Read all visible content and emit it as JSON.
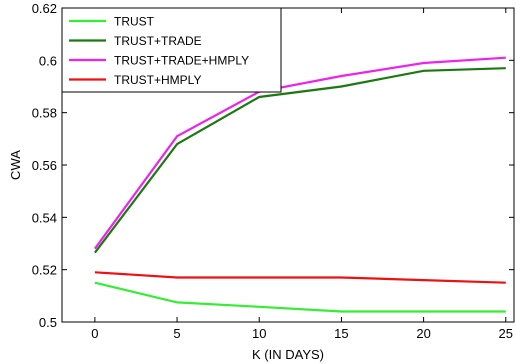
{
  "chart_data": {
    "type": "line",
    "title": "",
    "xlabel": "K (IN DAYS)",
    "ylabel": "CWA",
    "x": [
      0,
      5,
      10,
      15,
      20,
      25
    ],
    "xlim": [
      -2,
      25.5
    ],
    "ylim": [
      0.5,
      0.62
    ],
    "xticks": [
      0,
      5,
      10,
      15,
      20,
      25
    ],
    "yticks": [
      0.5,
      0.52,
      0.54,
      0.56,
      0.58,
      0.6,
      0.62
    ],
    "grid": false,
    "legend_position": "top-left",
    "series": [
      {
        "name": "TRUST",
        "color": "#33ee33",
        "values": [
          0.515,
          0.5075,
          0.5058,
          0.504,
          0.504,
          0.504
        ]
      },
      {
        "name": "TRUST+TRADE",
        "color": "#1a7a10",
        "values": [
          0.5265,
          0.568,
          0.586,
          0.59,
          0.596,
          0.597
        ]
      },
      {
        "name": "TRUST+TRADE+HMPLY",
        "color": "#ee22ee",
        "values": [
          0.528,
          0.571,
          0.588,
          0.594,
          0.599,
          0.601
        ]
      },
      {
        "name": "TRUST+HMPLY",
        "color": "#ee1111",
        "values": [
          0.519,
          0.517,
          0.517,
          0.517,
          0.516,
          0.515
        ]
      }
    ]
  }
}
